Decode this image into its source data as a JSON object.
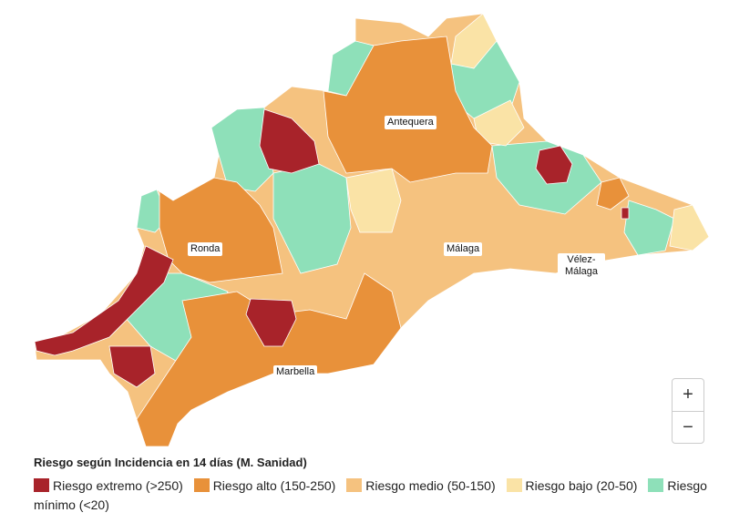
{
  "map": {
    "labels": [
      "Antequera",
      "Ronda",
      "Málaga",
      "Vélez-Málaga",
      "Marbella"
    ]
  },
  "legend": {
    "title": "Riesgo según Incidencia en 14 días (M. Sanidad)",
    "items": [
      {
        "label": "Riesgo extremo (>250)",
        "color": "#a8232a"
      },
      {
        "label": "Riesgo alto (150-250)",
        "color": "#e8913a"
      },
      {
        "label": "Riesgo medio (50-150)",
        "color": "#f5c27f"
      },
      {
        "label": "Riesgo bajo (20-50)",
        "color": "#fae3a6"
      },
      {
        "label": "Riesgo mínimo (<20)",
        "color": "#8ee0b9"
      }
    ]
  },
  "zoom": {
    "in": "+",
    "out": "−"
  }
}
